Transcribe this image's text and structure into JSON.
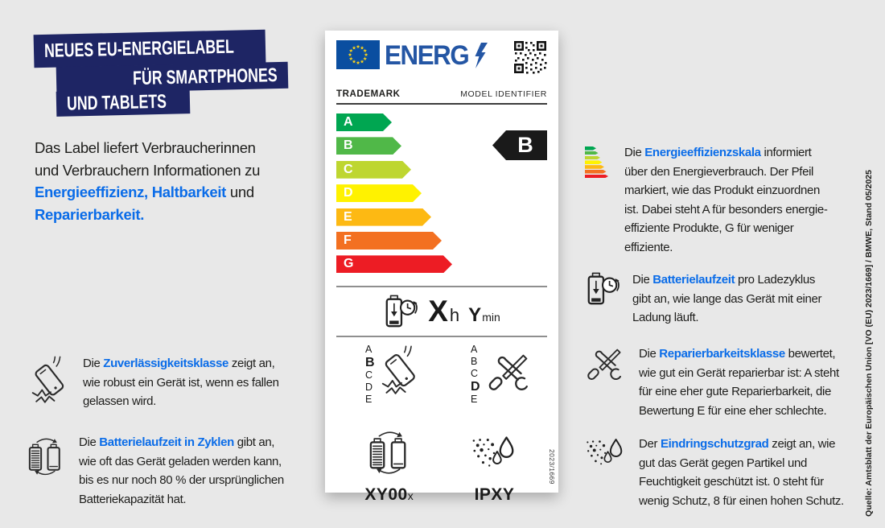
{
  "banner": {
    "line1": "NEUES EU-ENERGIELABEL",
    "line2": "FÜR SMARTPHONES",
    "line3": "UND TABLETS"
  },
  "intro": {
    "line1": "Das Label liefert Verbraucherinnen",
    "line2": "und Verbrauchern Informationen zu",
    "line3_highlight": "Energieeffizienz, Haltbarkeit",
    "line3_rest": " und",
    "line4_highlight": "Reparierbarkeit."
  },
  "colors": {
    "accent_blue": "#0a6ce8",
    "banner_navy": "#1e2564",
    "label_logo_blue": "#2456a4",
    "eu_flag_blue": "#0a4ea0",
    "rating_arrow_black": "#1a1a1a"
  },
  "label": {
    "logo_text": "ENERG",
    "trademark": "TRADEMARK",
    "model_identifier": "MODEL IDENTIFIER",
    "efficiency_scale": [
      {
        "grade": "A",
        "color": "#00a651"
      },
      {
        "grade": "B",
        "color": "#50b848"
      },
      {
        "grade": "C",
        "color": "#bed630"
      },
      {
        "grade": "D",
        "color": "#fff200"
      },
      {
        "grade": "E",
        "color": "#fdb913"
      },
      {
        "grade": "F",
        "color": "#f37021"
      },
      {
        "grade": "G",
        "color": "#ed1c24"
      }
    ],
    "rating": "B",
    "battery_time": {
      "hours_value": "X",
      "hours_unit": "h",
      "minutes_value": "Y",
      "minutes_unit": "min"
    },
    "reliability_class": {
      "letters": [
        "A",
        "B",
        "C",
        "D",
        "E"
      ],
      "selected": "B"
    },
    "repairability_class": {
      "letters": [
        "A",
        "B",
        "C",
        "D",
        "E"
      ],
      "selected": "D"
    },
    "battery_cycles": {
      "value": "XY00",
      "suffix": "x"
    },
    "ingress_protection": "IPXY",
    "regulation_ref": "2023/1669"
  },
  "left_items": [
    {
      "prefix": "Die ",
      "highlight": "Zuverlässigkeitsklasse",
      "first_rest": " zeigt an,",
      "lines": [
        "wie robust ein Gerät ist, wenn es fallen",
        "gelassen wird."
      ]
    },
    {
      "prefix": "Die ",
      "highlight": "Batterielaufzeit in Zyklen",
      "first_rest": " gibt an,",
      "lines": [
        "wie oft das Gerät geladen werden kann,",
        "bis es nur noch 80 % der ursprünglichen",
        "Batteriekapazität hat."
      ]
    }
  ],
  "right_items": [
    {
      "prefix": "Die ",
      "highlight": "Energieeffizienzskala",
      "first_rest": " informiert",
      "lines": [
        "über den Energieverbrauch. Der Pfeil",
        "markiert, wie das Produkt einzuordnen",
        "ist. Dabei steht A für besonders energie-",
        "effiziente Produkte, G für weniger",
        "effiziente."
      ]
    },
    {
      "prefix": "Die ",
      "highlight": "Batterielaufzeit",
      "first_rest": " pro Ladezyklus",
      "lines": [
        "gibt an, wie lange das Gerät mit einer",
        "Ladung läuft."
      ]
    },
    {
      "prefix": "Die ",
      "highlight": "Reparierbarkeitsklasse",
      "first_rest": " bewertet,",
      "lines": [
        "wie gut ein Gerät reparierbar ist: A steht",
        "für eine eher gute Reparierbarkeit, die",
        "Bewertung E für eine eher schlechte."
      ]
    },
    {
      "prefix": "Der ",
      "highlight": "Eindringschutzgrad",
      "first_rest": " zeigt an, wie",
      "lines": [
        "gut das Gerät gegen Partikel und",
        "Feuchtigkeit geschützt ist. 0 steht für",
        "wenig Schutz, 8 für einen hohen Schutz."
      ]
    }
  ],
  "source_note": "Quelle: Amtsblatt der Europäischen Union [VO (EU) 2023/1669] / BMWE, Stand 05/2025"
}
